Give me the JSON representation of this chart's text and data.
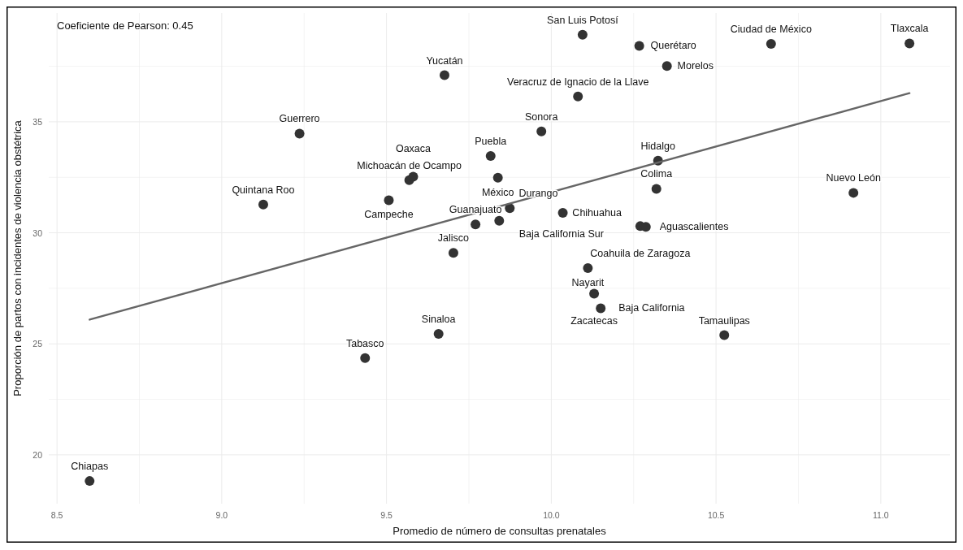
{
  "chart_data": {
    "type": "scatter",
    "xlabel": "Promedio de número de consultas prenatales",
    "ylabel": "Proporción de partos con incidentes de violencia obstétrica",
    "xlim": [
      8.475,
      11.21
    ],
    "ylim": [
      17.8,
      39.9
    ],
    "xticks": [
      8.5,
      {
        "value": 8.75,
        "label": null
      },
      {
        "value": 9,
        "label": "9.0"
      },
      {
        "value": 9.25,
        "label": null
      },
      9.5,
      {
        "value": 9.75,
        "label": null
      },
      {
        "value": 10,
        "label": "10.0"
      },
      {
        "value": 10.25,
        "label": null
      },
      10.5,
      {
        "value": 10.75,
        "label": null
      },
      {
        "value": 11,
        "label": "11.0"
      }
    ],
    "yticks": [
      20,
      {
        "value": 22.5,
        "label": null
      },
      25,
      {
        "value": 27.5,
        "label": null
      },
      30,
      {
        "value": 32.5,
        "label": null
      },
      35,
      {
        "value": 37.5,
        "label": null
      }
    ],
    "grid": true,
    "series": [
      {
        "marker": "circle",
        "color": "#333333",
        "x": [
          8.599,
          9.126,
          9.236,
          9.507,
          9.569,
          9.581,
          9.676,
          9.703,
          9.77,
          9.816,
          9.838,
          9.842,
          9.874,
          10.035,
          10.27,
          10.287,
          10.081,
          9.97,
          10.095,
          10.267,
          10.351,
          10.667,
          11.087,
          10.324,
          10.319,
          10.917,
          10.111,
          10.13,
          10.15,
          10.525,
          9.658,
          9.435
        ],
        "values": [
          18.82,
          31.27,
          34.47,
          31.47,
          32.37,
          32.53,
          37.1,
          29.1,
          30.38,
          33.46,
          32.48,
          30.54,
          31.11,
          30.9,
          30.3,
          30.27,
          36.14,
          34.57,
          38.92,
          38.42,
          37.51,
          38.51,
          38.53,
          33.25,
          31.98,
          31.8,
          28.41,
          27.26,
          26.6,
          25.39,
          25.45,
          24.36
        ]
      },
      {
        "type": "line",
        "color": "#666666",
        "x": [
          8.599,
          11.087
        ],
        "values": [
          26.09,
          36.29
        ]
      }
    ],
    "annotations": [
      "Coeficiente de Pearson: 0.45",
      {
        "text": "Chiapas",
        "x": 8.599,
        "y": 18.82
      },
      {
        "text": "Quintana Roo",
        "x": 9.126,
        "y": 31.27
      },
      {
        "text": "Guerrero",
        "x": 9.236,
        "y": 34.47
      },
      {
        "text": "Campeche",
        "x": 9.507,
        "y": 31.47
      },
      {
        "text": "Michoacán de Ocampo",
        "x": 9.569,
        "y": 32.37
      },
      {
        "text": "Oaxaca",
        "x": 9.581,
        "y": 32.53
      },
      {
        "text": "Yucatán",
        "x": 9.676,
        "y": 37.1
      },
      {
        "text": "Jalisco",
        "x": 9.703,
        "y": 29.1
      },
      {
        "text": "Guanajuato",
        "x": 9.77,
        "y": 30.38
      },
      {
        "text": "Puebla",
        "x": 9.816,
        "y": 33.46
      },
      {
        "text": "México",
        "x": 9.838,
        "y": 32.48
      },
      {
        "text": "Baja California Sur",
        "x": 9.842,
        "y": 30.54
      },
      {
        "text": "Durango",
        "x": 9.874,
        "y": 31.11
      },
      {
        "text": "Chihuahua",
        "x": 10.035,
        "y": 30.9
      },
      {
        "text": "Coahuila de Zaragoza",
        "x": 10.27,
        "y": 30.3
      },
      {
        "text": "Aguascalientes",
        "x": 10.287,
        "y": 30.27
      },
      {
        "text": "Veracruz de Ignacio de la Llave",
        "x": 10.081,
        "y": 36.14
      },
      {
        "text": "Sonora",
        "x": 9.97,
        "y": 34.57
      },
      {
        "text": "San Luis Potosí",
        "x": 10.095,
        "y": 38.92
      },
      {
        "text": "Querétaro",
        "x": 10.267,
        "y": 38.42
      },
      {
        "text": "Morelos",
        "x": 10.351,
        "y": 37.51
      },
      {
        "text": "Ciudad de México",
        "x": 10.667,
        "y": 38.51
      },
      {
        "text": "Tlaxcala",
        "x": 11.087,
        "y": 38.53
      },
      {
        "text": "Hidalgo",
        "x": 10.324,
        "y": 33.25
      },
      {
        "text": "Colima",
        "x": 10.319,
        "y": 31.98
      },
      {
        "text": "Nuevo León",
        "x": 10.917,
        "y": 31.8
      },
      {
        "text": "Nayarit",
        "x": 10.111,
        "y": 28.41
      },
      {
        "text": "Zacatecas",
        "x": 10.13,
        "y": 27.26
      },
      {
        "text": "Baja California",
        "x": 10.15,
        "y": 26.6
      },
      {
        "text": "Tamaulipas",
        "x": 10.525,
        "y": 25.39
      },
      {
        "text": "Sinaloa",
        "x": 9.658,
        "y": 25.45
      },
      {
        "text": "Tabasco",
        "x": 9.435,
        "y": 24.36
      }
    ]
  }
}
